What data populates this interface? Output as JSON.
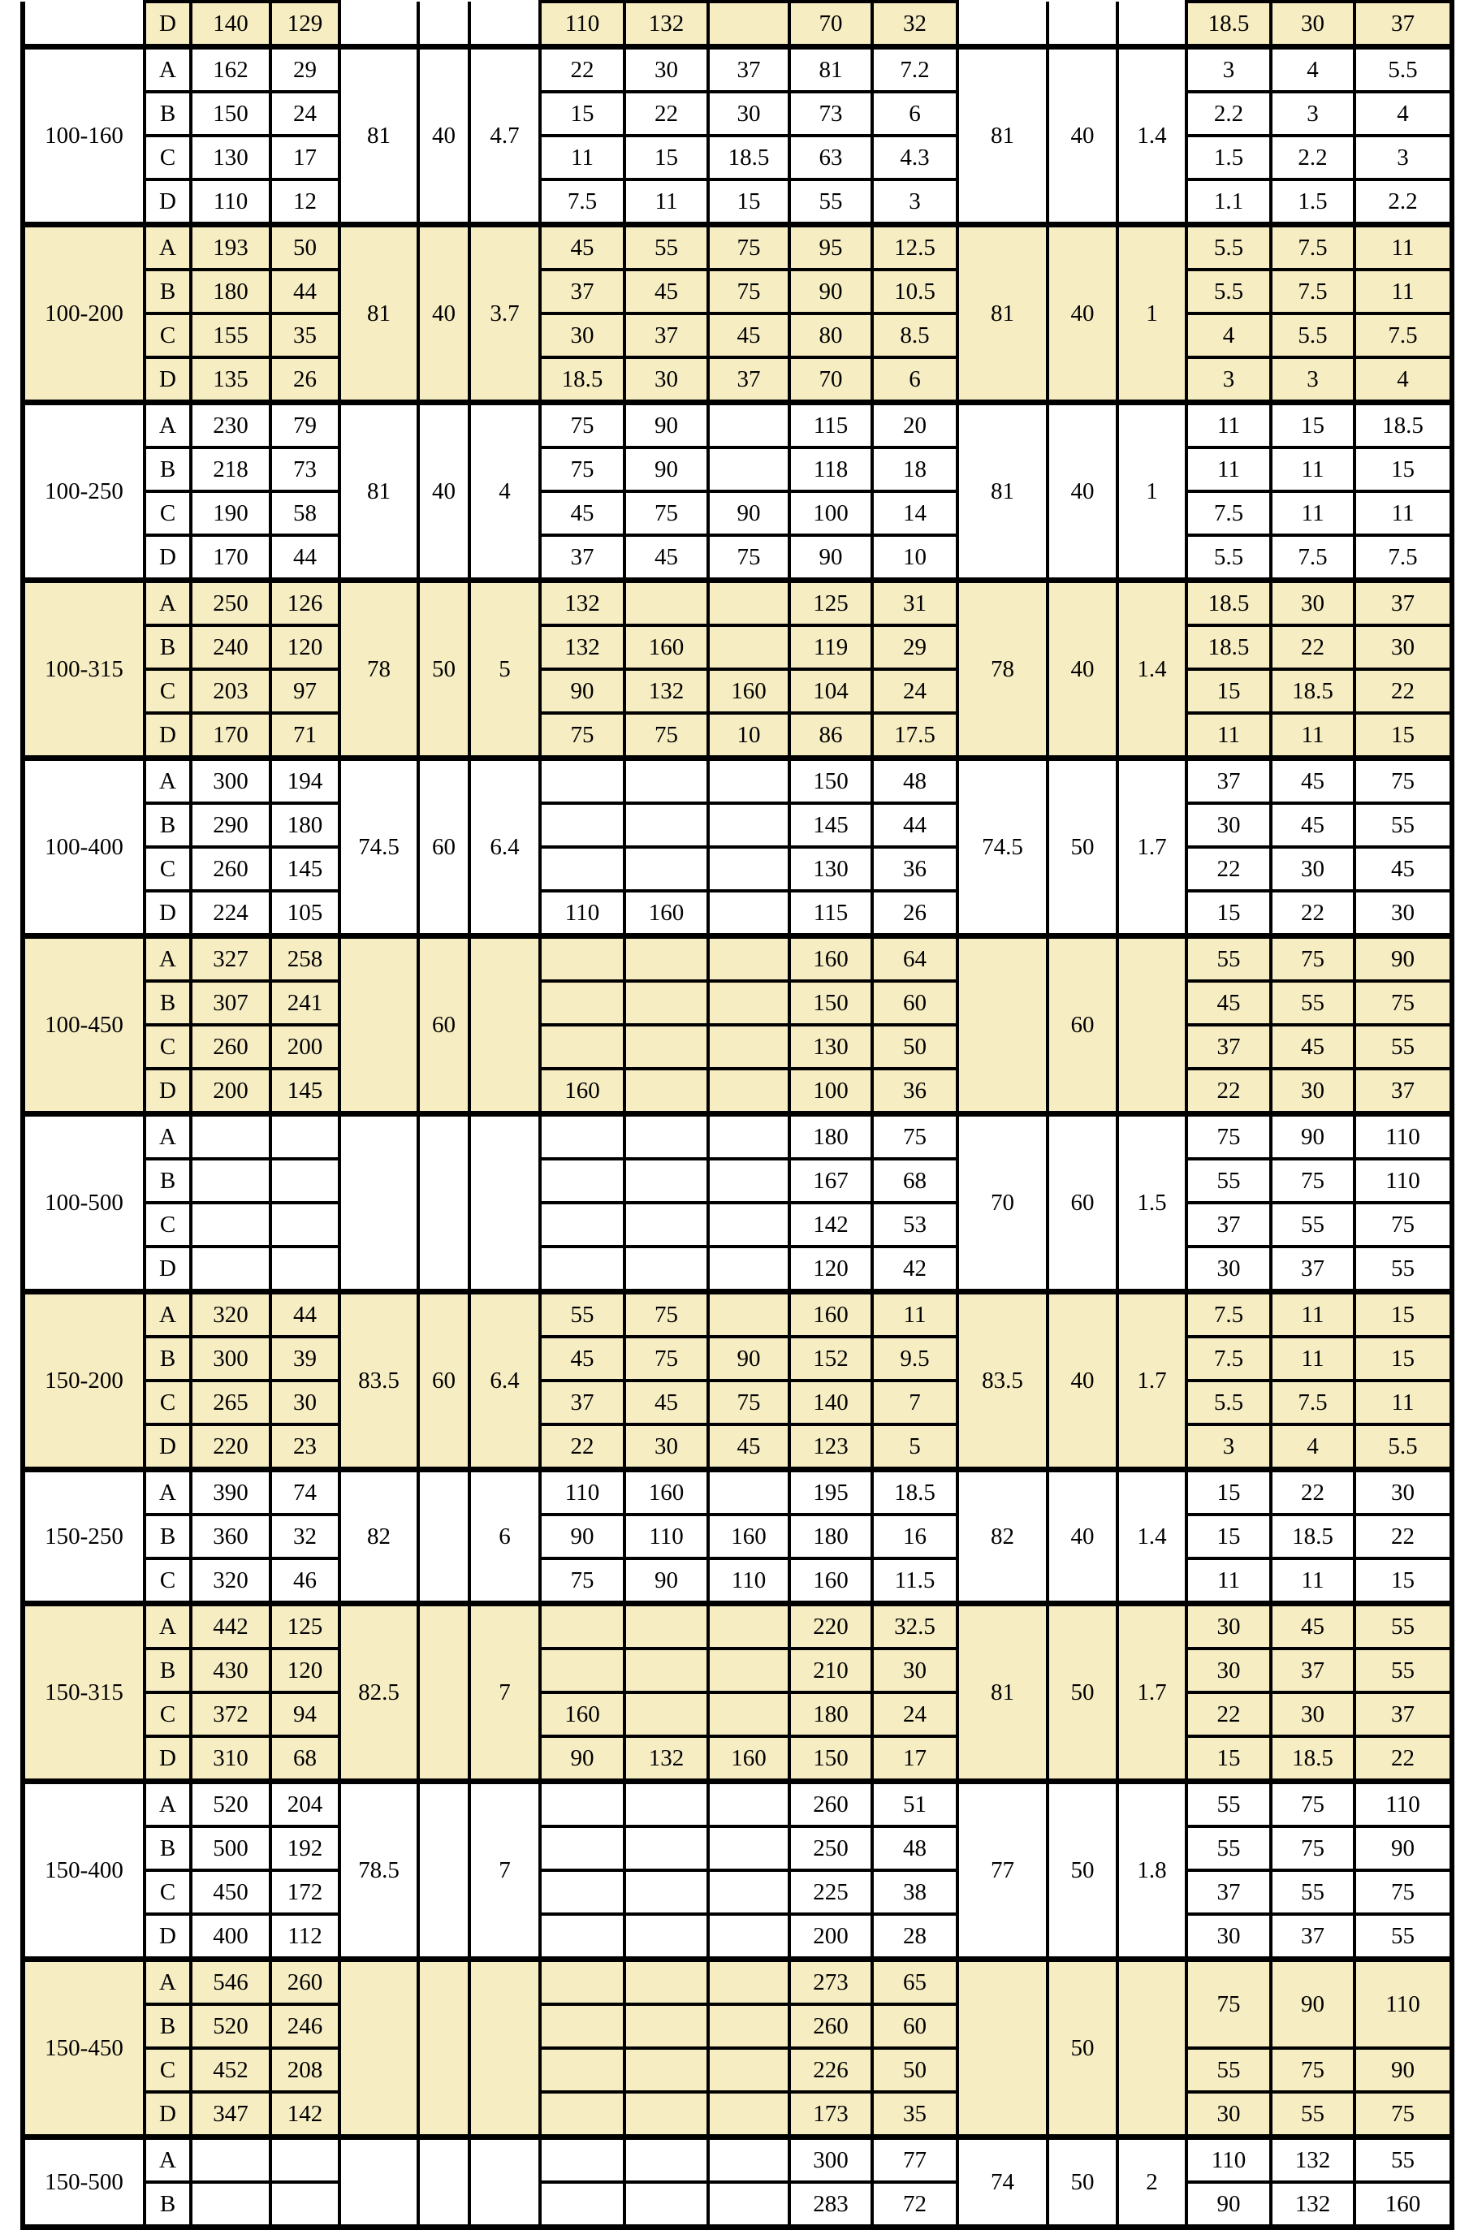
{
  "colors": {
    "group_shade": "#f7edc3",
    "plain_shade": "#ffffff",
    "border": "#000000",
    "text": "#000000",
    "page_background": "#ffffff"
  },
  "table": {
    "partial_row": {
      "model": "",
      "letter": "D",
      "c3": "140",
      "c4": "129",
      "merged_left": [
        "",
        "",
        ""
      ],
      "c8": "110",
      "c9": "132",
      "c10": "",
      "c11": "70",
      "c12": "32",
      "merged_right": [
        "",
        "",
        ""
      ],
      "c16": "18.5",
      "c17": "30",
      "c18": "37"
    },
    "groups": [
      {
        "model": "100-160",
        "shade": "w",
        "merged_left": [
          "81",
          "40",
          "4.7"
        ],
        "merged_right": [
          "81",
          "40",
          "1.4"
        ],
        "rows": [
          {
            "letter": "A",
            "c3": "162",
            "c4": "29",
            "c8": "22",
            "c9": "30",
            "c10": "37",
            "c11": "81",
            "c12": "7.2",
            "c16": "3",
            "c17": "4",
            "c18": "5.5"
          },
          {
            "letter": "B",
            "c3": "150",
            "c4": "24",
            "c8": "15",
            "c9": "22",
            "c10": "30",
            "c11": "73",
            "c12": "6",
            "c16": "2.2",
            "c17": "3",
            "c18": "4"
          },
          {
            "letter": "C",
            "c3": "130",
            "c4": "17",
            "c8": "11",
            "c9": "15",
            "c10": "18.5",
            "c11": "63",
            "c12": "4.3",
            "c16": "1.5",
            "c17": "2.2",
            "c18": "3"
          },
          {
            "letter": "D",
            "c3": "110",
            "c4": "12",
            "c8": "7.5",
            "c9": "11",
            "c10": "15",
            "c11": "55",
            "c12": "3",
            "c16": "1.1",
            "c17": "1.5",
            "c18": "2.2"
          }
        ]
      },
      {
        "model": "100-200",
        "shade": "y",
        "merged_left": [
          "81",
          "40",
          "3.7"
        ],
        "merged_right": [
          "81",
          "40",
          "1"
        ],
        "rows": [
          {
            "letter": "A",
            "c3": "193",
            "c4": "50",
            "c8": "45",
            "c9": "55",
            "c10": "75",
            "c11": "95",
            "c12": "12.5",
            "c16": "5.5",
            "c17": "7.5",
            "c18": "11"
          },
          {
            "letter": "B",
            "c3": "180",
            "c4": "44",
            "c8": "37",
            "c9": "45",
            "c10": "75",
            "c11": "90",
            "c12": "10.5",
            "c16": "5.5",
            "c17": "7.5",
            "c18": "11"
          },
          {
            "letter": "C",
            "c3": "155",
            "c4": "35",
            "c8": "30",
            "c9": "37",
            "c10": "45",
            "c11": "80",
            "c12": "8.5",
            "c16": "4",
            "c17": "5.5",
            "c18": "7.5"
          },
          {
            "letter": "D",
            "c3": "135",
            "c4": "26",
            "c8": "18.5",
            "c9": "30",
            "c10": "37",
            "c11": "70",
            "c12": "6",
            "c16": "3",
            "c17": "3",
            "c18": "4"
          }
        ]
      },
      {
        "model": "100-250",
        "shade": "w",
        "merged_left": [
          "81",
          "40",
          "4"
        ],
        "merged_right": [
          "81",
          "40",
          "1"
        ],
        "rows": [
          {
            "letter": "A",
            "c3": "230",
            "c4": "79",
            "c8": "75",
            "c9": "90",
            "c10": "",
            "c11": "115",
            "c12": "20",
            "c16": "11",
            "c17": "15",
            "c18": "18.5"
          },
          {
            "letter": "B",
            "c3": "218",
            "c4": "73",
            "c8": "75",
            "c9": "90",
            "c10": "",
            "c11": "118",
            "c12": "18",
            "c16": "11",
            "c17": "11",
            "c18": "15"
          },
          {
            "letter": "C",
            "c3": "190",
            "c4": "58",
            "c8": "45",
            "c9": "75",
            "c10": "90",
            "c11": "100",
            "c12": "14",
            "c16": "7.5",
            "c17": "11",
            "c18": "11"
          },
          {
            "letter": "D",
            "c3": "170",
            "c4": "44",
            "c8": "37",
            "c9": "45",
            "c10": "75",
            "c11": "90",
            "c12": "10",
            "c16": "5.5",
            "c17": "7.5",
            "c18": "7.5"
          }
        ]
      },
      {
        "model": "100-315",
        "shade": "y",
        "merged_left": [
          "78",
          "50",
          "5"
        ],
        "merged_right": [
          "78",
          "40",
          "1.4"
        ],
        "rows": [
          {
            "letter": "A",
            "c3": "250",
            "c4": "126",
            "c8": "132",
            "c9": "",
            "c10": "",
            "c11": "125",
            "c12": "31",
            "c16": "18.5",
            "c17": "30",
            "c18": "37"
          },
          {
            "letter": "B",
            "c3": "240",
            "c4": "120",
            "c8": "132",
            "c9": "160",
            "c10": "",
            "c11": "119",
            "c12": "29",
            "c16": "18.5",
            "c17": "22",
            "c18": "30"
          },
          {
            "letter": "C",
            "c3": "203",
            "c4": "97",
            "c8": "90",
            "c9": "132",
            "c10": "160",
            "c11": "104",
            "c12": "24",
            "c16": "15",
            "c17": "18.5",
            "c18": "22"
          },
          {
            "letter": "D",
            "c3": "170",
            "c4": "71",
            "c8": "75",
            "c9": "75",
            "c10": "10",
            "c11": "86",
            "c12": "17.5",
            "c16": "11",
            "c17": "11",
            "c18": "15"
          }
        ]
      },
      {
        "model": "100-400",
        "shade": "w",
        "merged_left": [
          "74.5",
          "60",
          "6.4"
        ],
        "merged_right": [
          "74.5",
          "50",
          "1.7"
        ],
        "rows": [
          {
            "letter": "A",
            "c3": "300",
            "c4": "194",
            "c8": "",
            "c9": "",
            "c10": "",
            "c11": "150",
            "c12": "48",
            "c16": "37",
            "c17": "45",
            "c18": "75"
          },
          {
            "letter": "B",
            "c3": "290",
            "c4": "180",
            "c8": "",
            "c9": "",
            "c10": "",
            "c11": "145",
            "c12": "44",
            "c16": "30",
            "c17": "45",
            "c18": "55"
          },
          {
            "letter": "C",
            "c3": "260",
            "c4": "145",
            "c8": "",
            "c9": "",
            "c10": "",
            "c11": "130",
            "c12": "36",
            "c16": "22",
            "c17": "30",
            "c18": "45"
          },
          {
            "letter": "D",
            "c3": "224",
            "c4": "105",
            "c8": "110",
            "c9": "160",
            "c10": "",
            "c11": "115",
            "c12": "26",
            "c16": "15",
            "c17": "22",
            "c18": "30"
          }
        ]
      },
      {
        "model": "100-450",
        "shade": "y",
        "merged_left": [
          "",
          "60",
          ""
        ],
        "merged_right": [
          "",
          "60",
          ""
        ],
        "rows": [
          {
            "letter": "A",
            "c3": "327",
            "c4": "258",
            "c8": "",
            "c9": "",
            "c10": "",
            "c11": "160",
            "c12": "64",
            "c16": "55",
            "c17": "75",
            "c18": "90"
          },
          {
            "letter": "B",
            "c3": "307",
            "c4": "241",
            "c8": "",
            "c9": "",
            "c10": "",
            "c11": "150",
            "c12": "60",
            "c16": "45",
            "c17": "55",
            "c18": "75"
          },
          {
            "letter": "C",
            "c3": "260",
            "c4": "200",
            "c8": "",
            "c9": "",
            "c10": "",
            "c11": "130",
            "c12": "50",
            "c16": "37",
            "c17": "45",
            "c18": "55"
          },
          {
            "letter": "D",
            "c3": "200",
            "c4": "145",
            "c8": "160",
            "c9": "",
            "c10": "",
            "c11": "100",
            "c12": "36",
            "c16": "22",
            "c17": "30",
            "c18": "37"
          }
        ]
      },
      {
        "model": "100-500",
        "shade": "w",
        "merged_left": [
          "",
          "",
          ""
        ],
        "merged_right": [
          "70",
          "60",
          "1.5"
        ],
        "rows": [
          {
            "letter": "A",
            "c3": "",
            "c4": "",
            "c8": "",
            "c9": "",
            "c10": "",
            "c11": "180",
            "c12": "75",
            "c16": "75",
            "c17": "90",
            "c18": "110"
          },
          {
            "letter": "B",
            "c3": "",
            "c4": "",
            "c8": "",
            "c9": "",
            "c10": "",
            "c11": "167",
            "c12": "68",
            "c16": "55",
            "c17": "75",
            "c18": "110"
          },
          {
            "letter": "C",
            "c3": "",
            "c4": "",
            "c8": "",
            "c9": "",
            "c10": "",
            "c11": "142",
            "c12": "53",
            "c16": "37",
            "c17": "55",
            "c18": "75"
          },
          {
            "letter": "D",
            "c3": "",
            "c4": "",
            "c8": "",
            "c9": "",
            "c10": "",
            "c11": "120",
            "c12": "42",
            "c16": "30",
            "c17": "37",
            "c18": "55"
          }
        ]
      },
      {
        "model": "150-200",
        "shade": "y",
        "merged_left": [
          "83.5",
          "60",
          "6.4"
        ],
        "merged_right": [
          "83.5",
          "40",
          "1.7"
        ],
        "rows": [
          {
            "letter": "A",
            "c3": "320",
            "c4": "44",
            "c8": "55",
            "c9": "75",
            "c10": "",
            "c11": "160",
            "c12": "11",
            "c16": "7.5",
            "c17": "11",
            "c18": "15"
          },
          {
            "letter": "B",
            "c3": "300",
            "c4": "39",
            "c8": "45",
            "c9": "75",
            "c10": "90",
            "c11": "152",
            "c12": "9.5",
            "c16": "7.5",
            "c17": "11",
            "c18": "15"
          },
          {
            "letter": "C",
            "c3": "265",
            "c4": "30",
            "c8": "37",
            "c9": "45",
            "c10": "75",
            "c11": "140",
            "c12": "7",
            "c16": "5.5",
            "c17": "7.5",
            "c18": "11"
          },
          {
            "letter": "D",
            "c3": "220",
            "c4": "23",
            "c8": "22",
            "c9": "30",
            "c10": "45",
            "c11": "123",
            "c12": "5",
            "c16": "3",
            "c17": "4",
            "c18": "5.5"
          }
        ]
      },
      {
        "model": "150-250",
        "shade": "w",
        "merged_left": [
          "82",
          "",
          "6"
        ],
        "merged_right": [
          "82",
          "40",
          "1.4"
        ],
        "rows": [
          {
            "letter": "A",
            "c3": "390",
            "c4": "74",
            "c8": "110",
            "c9": "160",
            "c10": "",
            "c11": "195",
            "c12": "18.5",
            "c16": "15",
            "c17": "22",
            "c18": "30"
          },
          {
            "letter": "B",
            "c3": "360",
            "c4": "32",
            "c8": "90",
            "c9": "110",
            "c10": "160",
            "c11": "180",
            "c12": "16",
            "c16": "15",
            "c17": "18.5",
            "c18": "22"
          },
          {
            "letter": "C",
            "c3": "320",
            "c4": "46",
            "c8": "75",
            "c9": "90",
            "c10": "110",
            "c11": "160",
            "c12": "11.5",
            "c16": "11",
            "c17": "11",
            "c18": "15"
          }
        ]
      },
      {
        "model": "150-315",
        "shade": "y",
        "merged_left": [
          "82.5",
          "",
          "7"
        ],
        "merged_right": [
          "81",
          "50",
          "1.7"
        ],
        "rows": [
          {
            "letter": "A",
            "c3": "442",
            "c4": "125",
            "c8": "",
            "c9": "",
            "c10": "",
            "c11": "220",
            "c12": "32.5",
            "c16": "30",
            "c17": "45",
            "c18": "55"
          },
          {
            "letter": "B",
            "c3": "430",
            "c4": "120",
            "c8": "",
            "c9": "",
            "c10": "",
            "c11": "210",
            "c12": "30",
            "c16": "30",
            "c17": "37",
            "c18": "55"
          },
          {
            "letter": "C",
            "c3": "372",
            "c4": "94",
            "c8": "160",
            "c9": "",
            "c10": "",
            "c11": "180",
            "c12": "24",
            "c16": "22",
            "c17": "30",
            "c18": "37"
          },
          {
            "letter": "D",
            "c3": "310",
            "c4": "68",
            "c8": "90",
            "c9": "132",
            "c10": "160",
            "c11": "150",
            "c12": "17",
            "c16": "15",
            "c17": "18.5",
            "c18": "22"
          }
        ]
      },
      {
        "model": "150-400",
        "shade": "w",
        "merged_left": [
          "78.5",
          "",
          "7"
        ],
        "merged_right": [
          "77",
          "50",
          "1.8"
        ],
        "rows": [
          {
            "letter": "A",
            "c3": "520",
            "c4": "204",
            "c8": "",
            "c9": "",
            "c10": "",
            "c11": "260",
            "c12": "51",
            "c16": "55",
            "c17": "75",
            "c18": "110"
          },
          {
            "letter": "B",
            "c3": "500",
            "c4": "192",
            "c8": "",
            "c9": "",
            "c10": "",
            "c11": "250",
            "c12": "48",
            "c16": "55",
            "c17": "75",
            "c18": "90"
          },
          {
            "letter": "C",
            "c3": "450",
            "c4": "172",
            "c8": "",
            "c9": "",
            "c10": "",
            "c11": "225",
            "c12": "38",
            "c16": "37",
            "c17": "55",
            "c18": "75"
          },
          {
            "letter": "D",
            "c3": "400",
            "c4": "112",
            "c8": "",
            "c9": "",
            "c10": "",
            "c11": "200",
            "c12": "28",
            "c16": "30",
            "c17": "37",
            "c18": "55"
          }
        ]
      },
      {
        "model": "150-450",
        "shade": "y",
        "merged_left": [
          "",
          "",
          ""
        ],
        "merged_right": [
          "",
          "50",
          ""
        ],
        "ab_merge": [
          "75",
          "90",
          "110"
        ],
        "rows": [
          {
            "letter": "A",
            "c3": "546",
            "c4": "260",
            "c8": "",
            "c9": "",
            "c10": "",
            "c11": "273",
            "c12": "65"
          },
          {
            "letter": "B",
            "c3": "520",
            "c4": "246",
            "c8": "",
            "c9": "",
            "c10": "",
            "c11": "260",
            "c12": "60"
          },
          {
            "letter": "C",
            "c3": "452",
            "c4": "208",
            "c8": "",
            "c9": "",
            "c10": "",
            "c11": "226",
            "c12": "50",
            "c16": "55",
            "c17": "75",
            "c18": "90"
          },
          {
            "letter": "D",
            "c3": "347",
            "c4": "142",
            "c8": "",
            "c9": "",
            "c10": "",
            "c11": "173",
            "c12": "35",
            "c16": "30",
            "c17": "55",
            "c18": "75"
          }
        ]
      },
      {
        "model": "150-500",
        "shade": "w",
        "merged_left": [
          "",
          "",
          ""
        ],
        "merged_right": [
          "74",
          "50",
          "2"
        ],
        "rows": [
          {
            "letter": "A",
            "c3": "",
            "c4": "",
            "c8": "",
            "c9": "",
            "c10": "",
            "c11": "300",
            "c12": "77",
            "c16": "110",
            "c17": "132",
            "c18": "55"
          },
          {
            "letter": "B",
            "c3": "",
            "c4": "",
            "c8": "",
            "c9": "",
            "c10": "",
            "c11": "283",
            "c12": "72",
            "c16": "90",
            "c17": "132",
            "c18": "160"
          }
        ]
      }
    ]
  }
}
